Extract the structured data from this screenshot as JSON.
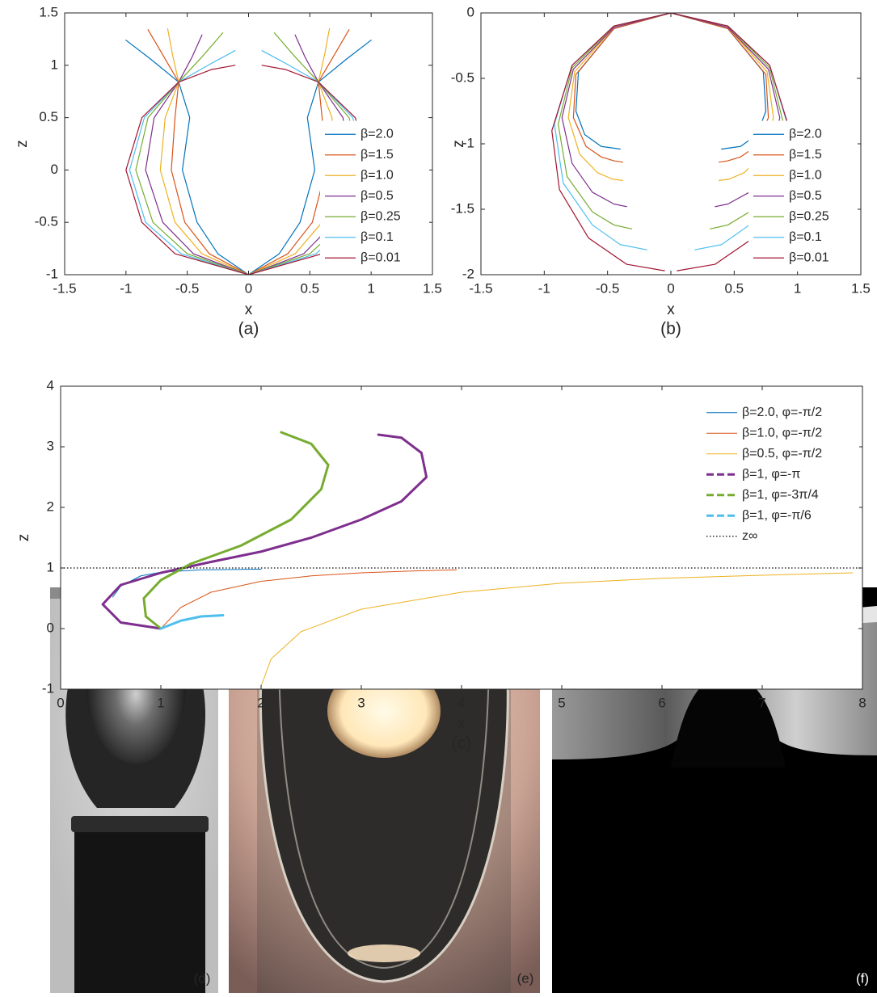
{
  "chart_data": [
    {
      "type": "line",
      "caption": "(a)",
      "xlabel": "x",
      "ylabel": "z",
      "xlim": [
        -1.5,
        1.5
      ],
      "ylim": [
        -1,
        1.5
      ],
      "xticks": [
        -1.5,
        -1,
        -0.5,
        0,
        0.5,
        1,
        1.5
      ],
      "yticks": [
        -1,
        -0.5,
        0,
        0.5,
        1,
        1.5
      ],
      "legend": "lower right",
      "series": [
        {
          "name": "β=2.0",
          "color": "#0072BD",
          "x": [
            0,
            -0.25,
            -0.42,
            -0.54,
            -0.48,
            -0.57,
            -0.8,
            -1.0,
            null,
            0,
            0.25,
            0.42,
            0.54,
            0.48,
            0.57,
            0.8,
            1.0
          ],
          "values": [
            -1,
            -0.8,
            -0.5,
            0,
            0.5,
            0.84,
            1.06,
            1.24,
            null,
            -1,
            -0.8,
            -0.5,
            0,
            0.5,
            0.84,
            1.06,
            1.24
          ]
        },
        {
          "name": "β=1.5",
          "color": "#D95319",
          "x": [
            0,
            -0.32,
            -0.52,
            -0.63,
            -0.6,
            -0.57,
            -0.7,
            -0.82,
            null,
            0,
            0.32,
            0.52,
            0.63,
            0.6,
            0.57,
            0.7,
            0.82
          ],
          "values": [
            -1,
            -0.8,
            -0.5,
            0,
            0.5,
            0.84,
            1.1,
            1.34,
            null,
            -1,
            -0.8,
            -0.5,
            0,
            0.5,
            0.84,
            1.1,
            1.34
          ]
        },
        {
          "name": "β=1.0",
          "color": "#EDB120",
          "x": [
            0,
            -0.38,
            -0.6,
            -0.72,
            -0.68,
            -0.57,
            -0.62,
            -0.66,
            null,
            0,
            0.38,
            0.6,
            0.72,
            0.68,
            0.57,
            0.62,
            0.66
          ],
          "values": [
            -1,
            -0.8,
            -0.5,
            0,
            0.5,
            0.84,
            1.1,
            1.35,
            null,
            -1,
            -0.8,
            -0.5,
            0,
            0.5,
            0.84,
            1.1,
            1.35
          ]
        },
        {
          "name": "β=0.5",
          "color": "#7E2F8E",
          "x": [
            0,
            -0.45,
            -0.7,
            -0.84,
            -0.77,
            -0.57,
            -0.46,
            -0.38,
            null,
            0,
            0.45,
            0.7,
            0.84,
            0.77,
            0.57,
            0.46,
            0.38
          ],
          "values": [
            -1,
            -0.8,
            -0.5,
            0,
            0.5,
            0.84,
            1.08,
            1.29,
            null,
            -1,
            -0.8,
            -0.5,
            0,
            0.5,
            0.84,
            1.08,
            1.29
          ]
        },
        {
          "name": "β=0.25",
          "color": "#77AC30",
          "x": [
            0,
            -0.5,
            -0.78,
            -0.92,
            -0.82,
            -0.57,
            -0.38,
            -0.21,
            null,
            0,
            0.5,
            0.78,
            0.92,
            0.82,
            0.57,
            0.38,
            0.21
          ],
          "values": [
            -1,
            -0.8,
            -0.5,
            0,
            0.5,
            0.84,
            1.08,
            1.31,
            null,
            -1,
            -0.8,
            -0.5,
            0,
            0.5,
            0.84,
            1.08,
            1.31
          ]
        },
        {
          "name": "β=0.1",
          "color": "#4DBEEE",
          "x": [
            0,
            -0.55,
            -0.84,
            -0.97,
            -0.85,
            -0.57,
            -0.3,
            -0.11,
            null,
            0,
            0.55,
            0.84,
            0.97,
            0.85,
            0.57,
            0.3,
            0.11
          ],
          "values": [
            -1,
            -0.8,
            -0.5,
            0,
            0.5,
            0.84,
            1.02,
            1.14,
            null,
            -1,
            -0.8,
            -0.5,
            0,
            0.5,
            0.84,
            1.02,
            1.14
          ]
        },
        {
          "name": "β=0.01",
          "color": "#A2142F",
          "x": [
            0,
            -0.6,
            -0.87,
            -1,
            -0.87,
            -0.57,
            -0.3,
            -0.11,
            null,
            0,
            0.6,
            0.87,
            1,
            0.87,
            0.57,
            0.3,
            0.11
          ],
          "values": [
            -1,
            -0.8,
            -0.5,
            0,
            0.5,
            0.84,
            0.96,
            1.0,
            null,
            -1,
            -0.8,
            -0.5,
            0,
            0.5,
            0.84,
            0.96,
            1.0
          ]
        }
      ]
    },
    {
      "type": "line",
      "caption": "(b)",
      "xlabel": "x",
      "ylabel": "z",
      "xlim": [
        -1.5,
        1.5
      ],
      "ylim": [
        -2,
        0
      ],
      "xticks": [
        -1.5,
        -1,
        -0.5,
        0,
        0.5,
        1,
        1.5
      ],
      "yticks": [
        -2,
        -1.5,
        -1,
        -0.5,
        0
      ],
      "legend": "lower right",
      "series": [
        {
          "name": "β=2.0",
          "color": "#0072BD",
          "x": [
            0,
            -0.45,
            -0.73,
            -0.75,
            -0.68,
            -0.55,
            -0.4,
            null,
            0,
            0.45,
            0.73,
            0.75,
            0.68,
            0.55,
            0.4
          ],
          "values": [
            0,
            -0.12,
            -0.45,
            -0.75,
            -0.93,
            -1.02,
            -1.04,
            null,
            0,
            -0.12,
            -0.45,
            -0.75,
            -0.93,
            -1.02,
            -1.04
          ]
        },
        {
          "name": "β=1.5",
          "color": "#D95319",
          "x": [
            0,
            -0.45,
            -0.75,
            -0.77,
            -0.67,
            -0.55,
            -0.45,
            -0.38,
            null,
            0,
            0.45,
            0.75,
            0.77,
            0.67,
            0.55,
            0.45,
            0.38
          ],
          "values": [
            0,
            -0.12,
            -0.47,
            -0.8,
            -1.02,
            -1.1,
            -1.13,
            -1.14,
            null,
            0,
            -0.12,
            -0.47,
            -0.8,
            -1.02,
            -1.1,
            -1.13,
            -1.14
          ]
        },
        {
          "name": "β=1.0",
          "color": "#EDB120",
          "x": [
            0,
            -0.45,
            -0.76,
            -0.81,
            -0.72,
            -0.58,
            -0.46,
            -0.38,
            null,
            0,
            0.45,
            0.76,
            0.81,
            0.72,
            0.58,
            0.46,
            0.38
          ],
          "values": [
            0,
            -0.11,
            -0.45,
            -0.8,
            -1.08,
            -1.22,
            -1.27,
            -1.28,
            null,
            0,
            -0.11,
            -0.45,
            -0.8,
            -1.08,
            -1.22,
            -1.27,
            -1.28
          ]
        },
        {
          "name": "β=0.5",
          "color": "#7E2F8E",
          "x": [
            0,
            -0.45,
            -0.77,
            -0.86,
            -0.78,
            -0.62,
            -0.45,
            -0.35,
            null,
            0,
            0.45,
            0.77,
            0.86,
            0.78,
            0.62,
            0.45,
            0.35
          ],
          "values": [
            0,
            -0.11,
            -0.43,
            -0.8,
            -1.15,
            -1.37,
            -1.46,
            -1.48,
            null,
            0,
            -0.11,
            -0.43,
            -0.8,
            -1.15,
            -1.37,
            -1.46,
            -1.48
          ]
        },
        {
          "name": "β=0.25",
          "color": "#77AC30",
          "x": [
            0,
            -0.45,
            -0.78,
            -0.89,
            -0.82,
            -0.62,
            -0.45,
            -0.31,
            null,
            0,
            0.45,
            0.78,
            0.89,
            0.82,
            0.62,
            0.45,
            0.31
          ],
          "values": [
            0,
            -0.1,
            -0.42,
            -0.85,
            -1.25,
            -1.52,
            -1.62,
            -1.65,
            null,
            0,
            -0.1,
            -0.42,
            -0.85,
            -1.25,
            -1.52,
            -1.62,
            -1.65
          ]
        },
        {
          "name": "β=0.1",
          "color": "#4DBEEE",
          "x": [
            0,
            -0.45,
            -0.78,
            -0.92,
            -0.85,
            -0.62,
            -0.4,
            -0.19,
            null,
            0,
            0.45,
            0.78,
            0.92,
            0.85,
            0.62,
            0.4,
            0.19
          ],
          "values": [
            0,
            -0.1,
            -0.4,
            -0.85,
            -1.3,
            -1.62,
            -1.77,
            -1.81,
            null,
            0,
            -0.1,
            -0.4,
            -0.85,
            -1.3,
            -1.62,
            -1.77,
            -1.81
          ]
        },
        {
          "name": "β=0.01",
          "color": "#A2142F",
          "x": [
            0,
            -0.45,
            -0.78,
            -0.94,
            -0.88,
            -0.65,
            -0.35,
            -0.05,
            null,
            0,
            0.45,
            0.78,
            0.94,
            0.88,
            0.65,
            0.35,
            0.05
          ],
          "values": [
            0,
            -0.1,
            -0.4,
            -0.9,
            -1.35,
            -1.72,
            -1.92,
            -1.97,
            null,
            0,
            -0.1,
            -0.4,
            -0.9,
            -1.35,
            -1.72,
            -1.92,
            -1.97
          ]
        }
      ]
    },
    {
      "type": "line",
      "caption": "(c)",
      "xlabel": "x",
      "ylabel": "z",
      "xlim": [
        0,
        8
      ],
      "ylim": [
        -1,
        4
      ],
      "xticks": [
        0,
        1,
        2,
        3,
        4,
        5,
        6,
        7,
        8
      ],
      "yticks": [
        -1,
        0,
        1,
        2,
        3,
        4
      ],
      "legend": "upper right",
      "series": [
        {
          "name": "β=2.0, φ=-π/2",
          "color": "#0072BD",
          "linestyle": "solid",
          "linewidth": 1,
          "x": [
            0.52,
            0.6,
            0.8,
            1.0,
            1.4,
            2.0
          ],
          "values": [
            0.52,
            0.7,
            0.87,
            0.93,
            0.97,
            0.98
          ]
        },
        {
          "name": "β=1.0, φ=-π/2",
          "color": "#D95319",
          "linestyle": "solid",
          "linewidth": 1,
          "x": [
            1,
            1.2,
            1.5,
            2,
            2.5,
            3,
            3.5,
            3.95
          ],
          "values": [
            0,
            0.35,
            0.6,
            0.78,
            0.87,
            0.92,
            0.95,
            0.97
          ]
        },
        {
          "name": "β=0.5, φ=-π/2",
          "color": "#EDB120",
          "linestyle": "solid",
          "linewidth": 1,
          "x": [
            2,
            2.1,
            2.4,
            3,
            4,
            5,
            6,
            7,
            7.9
          ],
          "values": [
            -0.95,
            -0.5,
            -0.05,
            0.32,
            0.6,
            0.75,
            0.83,
            0.88,
            0.92
          ]
        },
        {
          "name": "β=1, φ=-π",
          "color": "#7E2F8E",
          "linestyle": "dashed",
          "linewidth": 3,
          "x": [
            1,
            0.6,
            0.42,
            0.6,
            1,
            1.5,
            2,
            2.5,
            3,
            3.4,
            3.65,
            3.6,
            3.4,
            3.17
          ],
          "values": [
            0,
            0.1,
            0.4,
            0.72,
            0.92,
            1.1,
            1.27,
            1.5,
            1.8,
            2.1,
            2.5,
            2.9,
            3.15,
            3.2
          ]
        },
        {
          "name": "β=1, φ=-3π/4",
          "color": "#77AC30",
          "linestyle": "dashed",
          "linewidth": 3,
          "x": [
            1,
            0.85,
            0.83,
            1,
            1.3,
            1.8,
            2.3,
            2.6,
            2.67,
            2.5,
            2.2
          ],
          "values": [
            0,
            0.2,
            0.5,
            0.8,
            1.07,
            1.37,
            1.8,
            2.3,
            2.7,
            3.05,
            3.24
          ]
        },
        {
          "name": "β=1, φ=-π/6",
          "color": "#4DBEEE",
          "linestyle": "dashed",
          "linewidth": 3,
          "x": [
            1,
            1.2,
            1.4,
            1.62
          ],
          "values": [
            0,
            0.13,
            0.2,
            0.22
          ]
        },
        {
          "name": "z∞",
          "color": "#000000",
          "linestyle": "dotted",
          "linewidth": 1.2,
          "x": [
            0,
            8
          ],
          "values": [
            1,
            1
          ]
        }
      ]
    }
  ],
  "photos": [
    {
      "label": "(d)"
    },
    {
      "label": "(e)"
    },
    {
      "label": "(f)"
    }
  ]
}
